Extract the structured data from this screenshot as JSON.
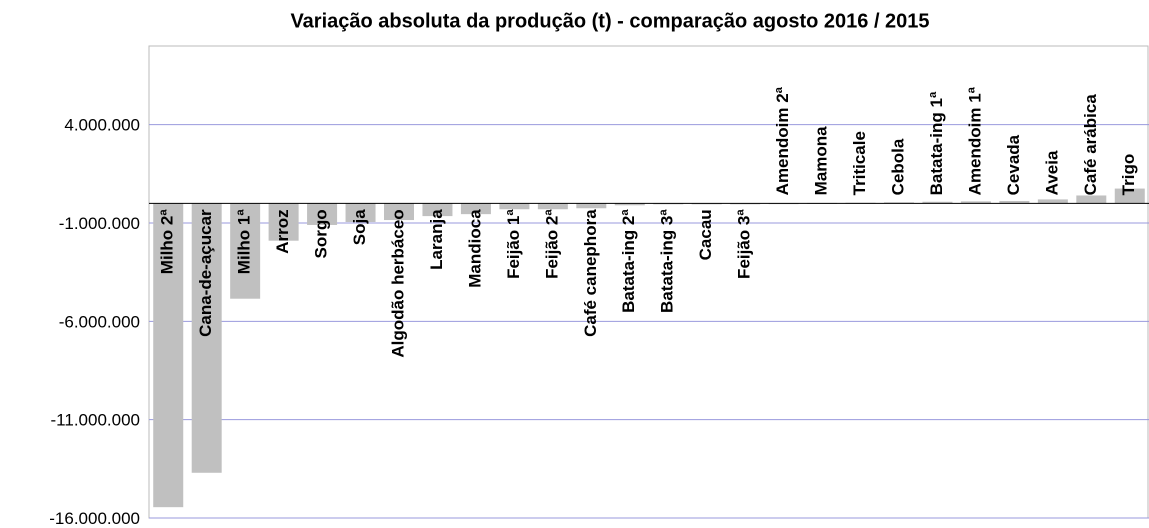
{
  "chart_data": {
    "type": "bar",
    "title": "Variação absoluta da produção (t) - comparação agosto 2016 / 2015",
    "categories": [
      "Milho 2ª",
      "Cana-de-açucar",
      "Milho 1ª",
      "Arroz",
      "Sorgo",
      "Soja",
      "Algodão herbáceo",
      "Laranja",
      "Mandioca",
      "Feijão 1ª",
      "Feijão 2ª",
      "Café canephora",
      "Batata-ing 2ª",
      "Batata-ing 3ª",
      "Cacau",
      "Feijão 3ª",
      "Amendoim 2ª",
      "Mamona",
      "Triticale",
      "Cebola",
      "Batata-ing 1ª",
      "Amendoim 1ª",
      "Cevada",
      "Aveia",
      "Café arábica",
      "Trigo"
    ],
    "values": [
      -15450000,
      -13700000,
      -4850000,
      -1900000,
      -1100000,
      -950000,
      -850000,
      -650000,
      -550000,
      -300000,
      -300000,
      -250000,
      -100000,
      -50000,
      -20000,
      -10000,
      10000,
      20000,
      30000,
      50000,
      80000,
      100000,
      120000,
      200000,
      400000,
      750000
    ],
    "color": "#c0c0c0",
    "ylim": [
      -16000000,
      8000000
    ],
    "yticks": [
      {
        "value": 4000000,
        "label": "4.000.000"
      },
      {
        "value": -1000000,
        "label": "-1.000.000"
      },
      {
        "value": -6000000,
        "label": "-6.000.000"
      },
      {
        "value": -11000000,
        "label": "-11.000.000"
      },
      {
        "value": -16000000,
        "label": "-16.000.000"
      }
    ],
    "grid": true
  }
}
